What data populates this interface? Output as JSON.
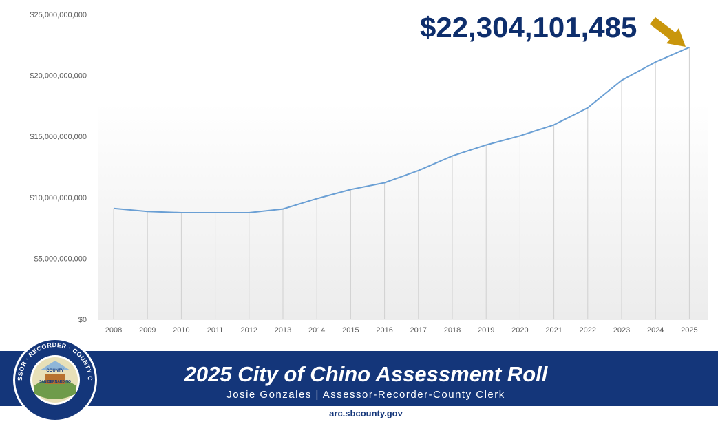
{
  "chart_data": {
    "type": "line",
    "title": "",
    "xlabel": "",
    "ylabel": "",
    "categories": [
      "2008",
      "2009",
      "2010",
      "2011",
      "2012",
      "2013",
      "2014",
      "2015",
      "2016",
      "2017",
      "2018",
      "2019",
      "2020",
      "2021",
      "2022",
      "2023",
      "2024",
      "2025"
    ],
    "series": [
      {
        "values": [
          9100000000,
          8850000000,
          8750000000,
          8750000000,
          8750000000,
          9050000000,
          9900000000,
          10650000000,
          11200000000,
          12200000000,
          13400000000,
          14300000000,
          15050000000,
          15950000000,
          17350000000,
          19600000000,
          21100000000,
          22304101485
        ],
        "color": "#6a9fd4"
      }
    ],
    "ylim": [
      0,
      25000000000
    ],
    "yticks": [
      0,
      5000000000,
      10000000000,
      15000000000,
      20000000000,
      25000000000
    ],
    "ytick_labels": [
      "$0",
      "$5,000,000,000",
      "$10,000,000,000",
      "$15,000,000,000",
      "$20,000,000,000",
      "$25,000,000,000"
    ],
    "grid": "vertical drop lines",
    "legend": "none",
    "annotation": {
      "text": "$22,304,101,485",
      "target": "2025",
      "color": "#0e2e6c",
      "arrow_color": "#c9960c"
    }
  },
  "banner": {
    "title": "2025 City of Chino Assessment Roll",
    "subtitle": "Josie Gonzales | Assessor-Recorder-County Clerk",
    "url": "arc.sbcounty.gov",
    "background_color": "#14367a"
  },
  "seal": {
    "text_top": "ASSESSOR · RECORDER · COUNTY CLERK",
    "text_inner_1": "COUNTY",
    "text_inner_2": "SAN BERNARDINO",
    "icon": "county-seal-icon"
  }
}
